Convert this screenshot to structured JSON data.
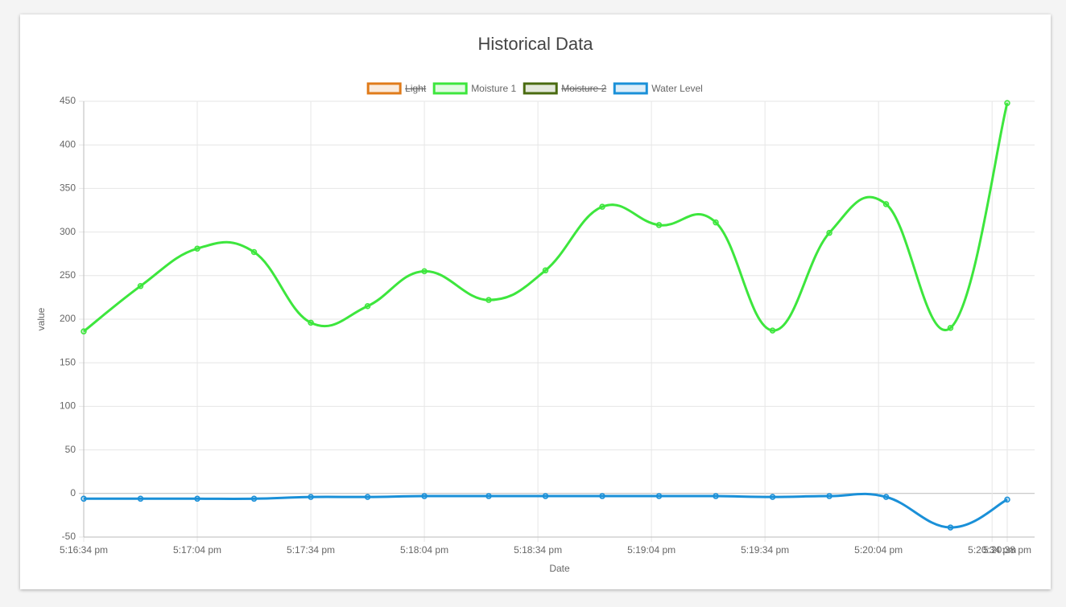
{
  "chart_data": {
    "type": "line",
    "title": "Historical Data",
    "x_label": "Date",
    "y_label": "value",
    "x": [
      "5:16:34 pm",
      "5:16:49 pm",
      "5:17:04 pm",
      "5:17:19 pm",
      "5:17:34 pm",
      "5:17:49 pm",
      "5:18:04 pm",
      "5:18:21 pm",
      "5:18:36 pm",
      "5:18:51 pm",
      "5:19:06 pm",
      "5:19:21 pm",
      "5:19:36 pm",
      "5:19:51 pm",
      "5:20:06 pm",
      "5:20:23 pm",
      "5:20:38 pm"
    ],
    "series": [
      {
        "name": "Light",
        "color": "#e07b1a",
        "hidden": true,
        "values": [
          null,
          null,
          null,
          null,
          null,
          null,
          null,
          null,
          null,
          null,
          null,
          null,
          null,
          null,
          null,
          null,
          null
        ]
      },
      {
        "name": "Moisture 1",
        "color": "#3de63d",
        "hidden": false,
        "values": [
          186,
          238,
          281,
          277,
          196,
          215,
          255,
          222,
          256,
          329,
          308,
          311,
          187,
          299,
          332,
          190,
          448
        ]
      },
      {
        "name": "Moisture 2",
        "color": "#4a6b10",
        "hidden": true,
        "values": [
          null,
          null,
          null,
          null,
          null,
          null,
          null,
          null,
          null,
          null,
          null,
          null,
          null,
          null,
          null,
          null,
          null
        ]
      },
      {
        "name": "Water Level",
        "color": "#1a90d8",
        "hidden": false,
        "values": [
          -6,
          -6,
          -6,
          -6,
          -4,
          -4,
          -3,
          -3,
          -3,
          -3,
          -3,
          -3,
          -4,
          -3,
          -4,
          -39,
          -7
        ]
      }
    ],
    "xlim": [
      "5:16:34 pm",
      "5:20:38 pm"
    ],
    "xticks": [
      "5:16:34 pm",
      "5:17:04 pm",
      "5:17:34 pm",
      "5:18:04 pm",
      "5:18:34 pm",
      "5:19:04 pm",
      "5:19:34 pm",
      "5:20:04 pm",
      "5:20:34 pm",
      "5:20:38 pm"
    ],
    "ylim": [
      -50,
      450
    ],
    "yticks": [
      -50,
      0,
      50,
      100,
      150,
      200,
      250,
      300,
      350,
      400,
      450
    ],
    "grid": true,
    "legend": "top"
  }
}
